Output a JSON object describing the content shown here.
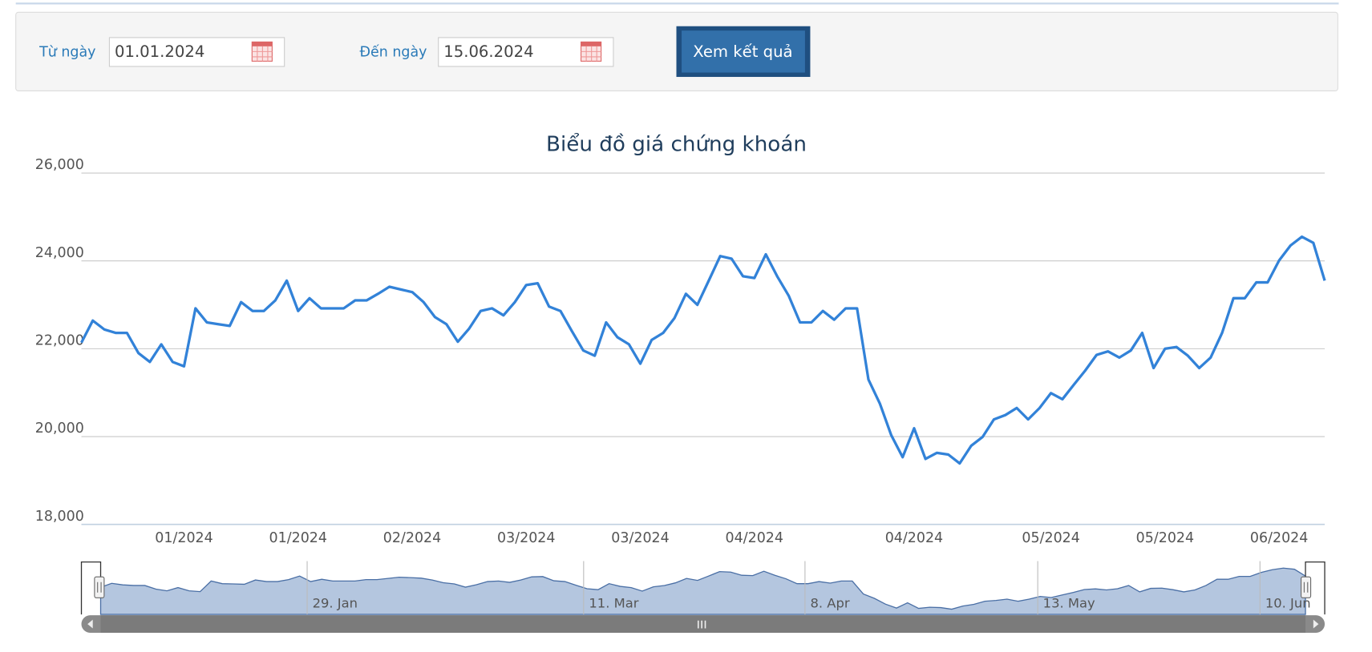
{
  "form": {
    "from_label": "Từ ngày",
    "from_value": "01.01.2024",
    "to_label": "Đến ngày",
    "to_value": "15.06.2024",
    "submit": "Xem kết quả"
  },
  "chart_data": {
    "type": "line",
    "title": "Biểu đồ giá chứng khoán",
    "color": "#3282d8",
    "grid": true,
    "ylim": [
      18000,
      26000
    ],
    "yticks": [
      {
        "value": 18000,
        "label": "18,000"
      },
      {
        "value": 20000,
        "label": "20,000"
      },
      {
        "value": 22000,
        "label": "22,000"
      },
      {
        "value": 24000,
        "label": "24,000"
      },
      {
        "value": 26000,
        "label": "26,000"
      }
    ],
    "categories": [
      null,
      null,
      null,
      null,
      null,
      null,
      null,
      null,
      null,
      "01/2024",
      null,
      null,
      null,
      null,
      null,
      null,
      null,
      null,
      null,
      "01/2024",
      null,
      null,
      null,
      null,
      null,
      null,
      null,
      null,
      null,
      "02/2024",
      null,
      null,
      null,
      null,
      null,
      null,
      null,
      null,
      null,
      "03/2024",
      null,
      null,
      null,
      null,
      null,
      null,
      null,
      null,
      null,
      "03/2024",
      null,
      null,
      null,
      null,
      null,
      null,
      null,
      null,
      null,
      "04/2024",
      null,
      null,
      null,
      null,
      null,
      null,
      null,
      null,
      null,
      null,
      null,
      null,
      null,
      "04/2024",
      null,
      null,
      null,
      null,
      null,
      null,
      null,
      null,
      null,
      null,
      null,
      "05/2024",
      null,
      null,
      null,
      null,
      null,
      null,
      null,
      null,
      null,
      "05/2024",
      null,
      null,
      null,
      null,
      null,
      null,
      null,
      null,
      null,
      "06/2024",
      null,
      null,
      null,
      null
    ],
    "values": [
      22140,
      22640,
      22440,
      22360,
      22360,
      21900,
      21700,
      22100,
      21700,
      21600,
      22920,
      22600,
      22560,
      22520,
      23060,
      22860,
      22860,
      23100,
      23550,
      22860,
      23150,
      22920,
      22920,
      22920,
      23100,
      23100,
      23250,
      23410,
      23350,
      23290,
      23060,
      22720,
      22560,
      22160,
      22460,
      22860,
      22920,
      22760,
      23060,
      23450,
      23490,
      22960,
      22860,
      22400,
      21960,
      21840,
      22600,
      22260,
      22100,
      21660,
      22200,
      22360,
      22700,
      23250,
      23000,
      23550,
      24110,
      24050,
      23650,
      23610,
      24150,
      23650,
      23210,
      22600,
      22600,
      22860,
      22660,
      22920,
      22920,
      21300,
      20750,
      20030,
      19530,
      20190,
      19490,
      19630,
      19590,
      19390,
      19790,
      19990,
      20390,
      20490,
      20650,
      20390,
      20650,
      20990,
      20850,
      21180,
      21500,
      21860,
      21940,
      21800,
      21960,
      22360,
      21560,
      22000,
      22040,
      21840,
      21560,
      21800,
      22360,
      23150,
      23150,
      23510,
      23510,
      24010,
      24350,
      24550,
      24410,
      23550
    ],
    "navigator_labels": [
      "29. Jan",
      "11. Mar",
      "8. Apr",
      "13. May",
      "10. Jun"
    ]
  }
}
